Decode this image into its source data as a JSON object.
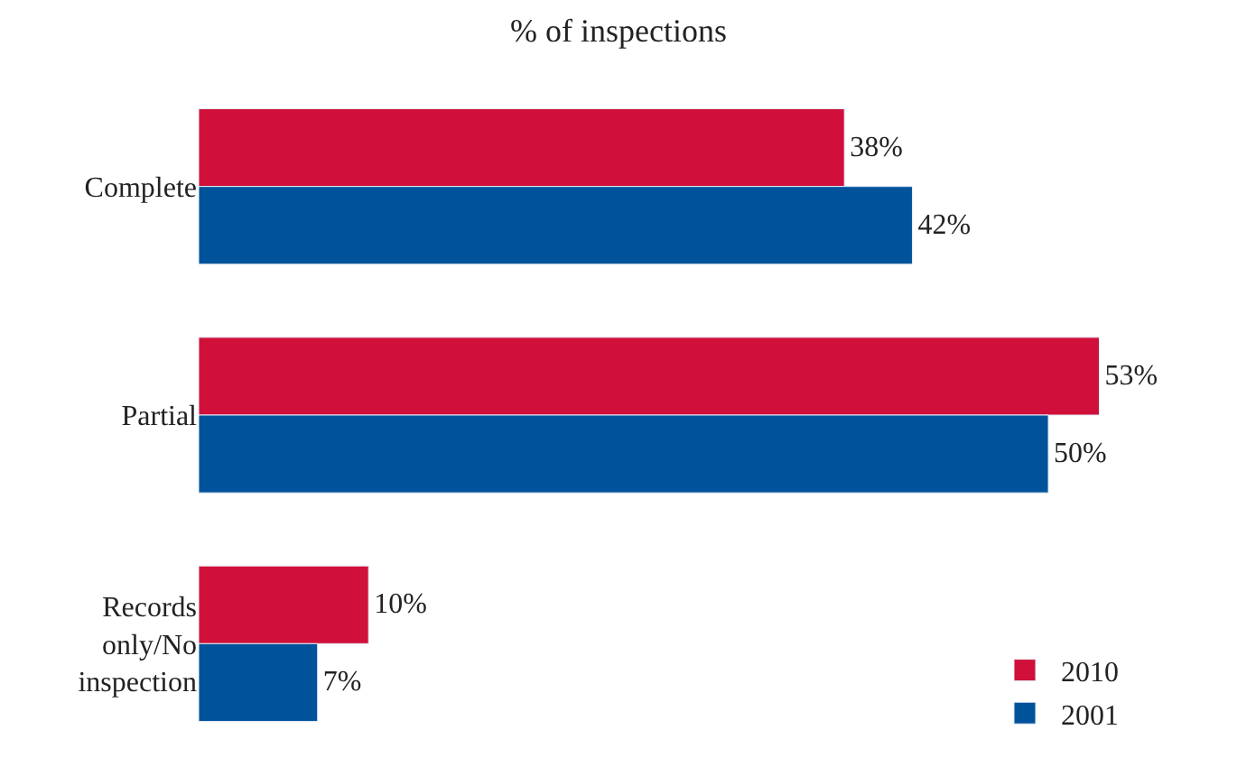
{
  "chart_data": {
    "type": "bar",
    "orientation": "horizontal",
    "title": "% of inspections",
    "categories": [
      "Complete",
      "Partial",
      "Records only/No inspection"
    ],
    "series": [
      {
        "name": "2010",
        "color": "#d0103a",
        "values": [
          38,
          53,
          10
        ],
        "value_labels": [
          "38%",
          "53%",
          "10%"
        ]
      },
      {
        "name": "2001",
        "color": "#00529b",
        "values": [
          42,
          50,
          7
        ],
        "value_labels": [
          "42%",
          "50%",
          "7%"
        ]
      }
    ],
    "legend": "bottom right"
  }
}
